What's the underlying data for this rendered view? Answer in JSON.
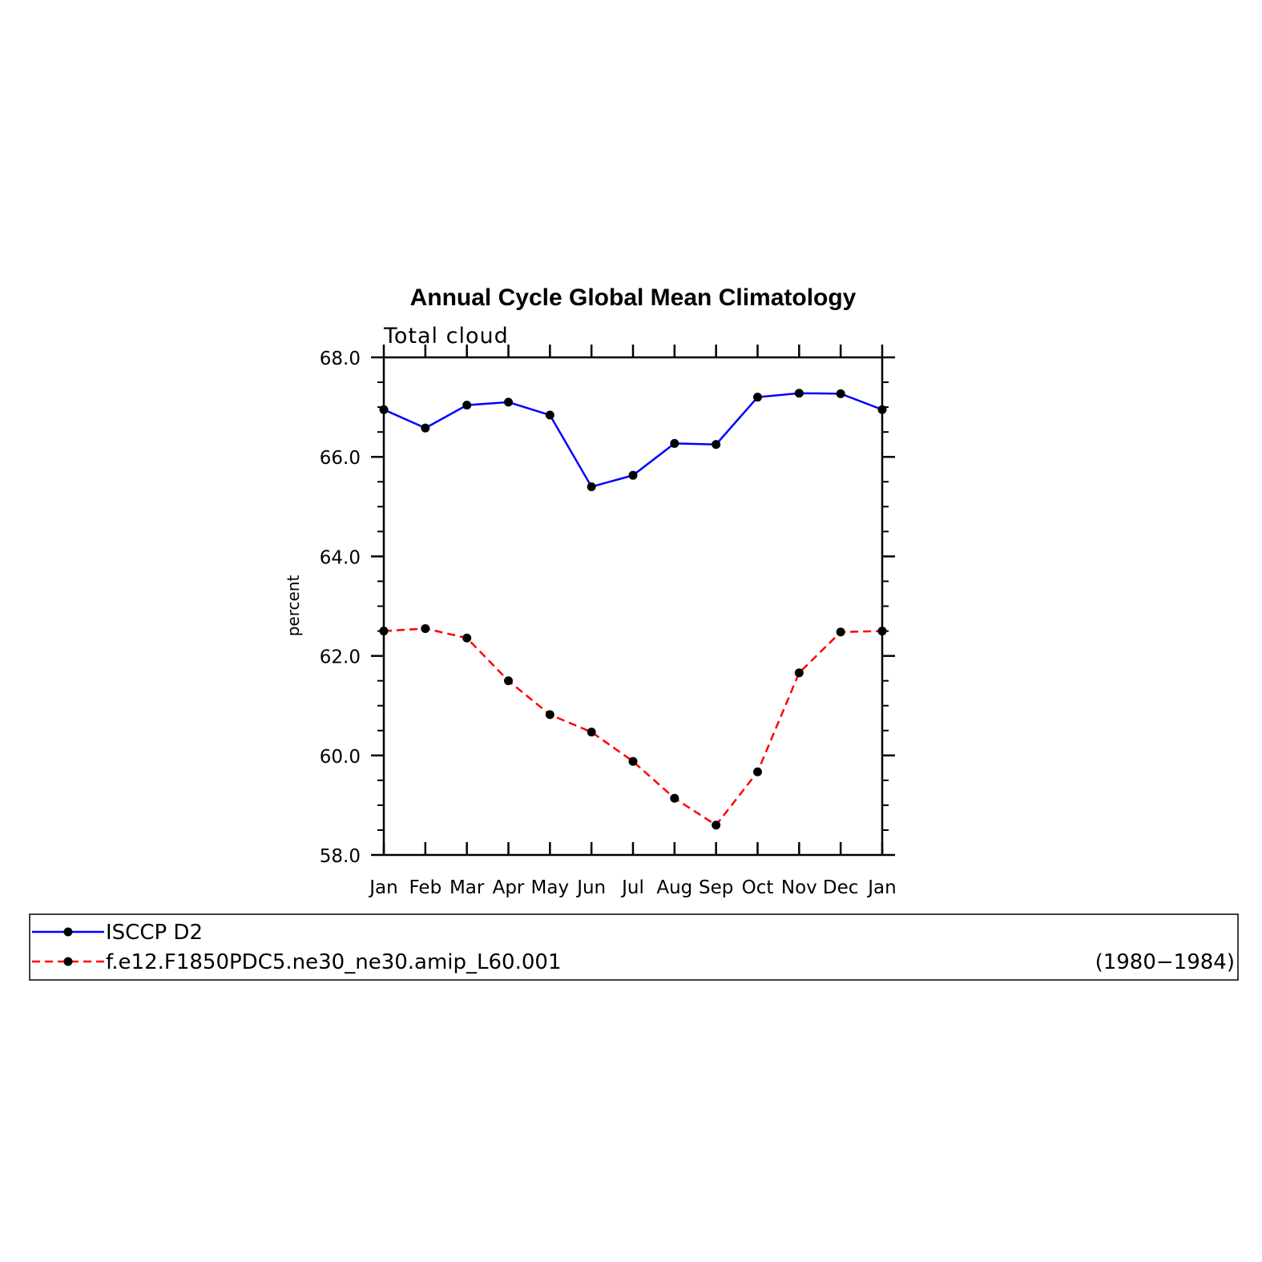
{
  "chart_data": {
    "type": "line",
    "title": "Annual Cycle Global Mean Climatology",
    "subtitle": "Total cloud",
    "xlabel": "",
    "ylabel": "percent",
    "categories": [
      "Jan",
      "Feb",
      "Mar",
      "Apr",
      "May",
      "Jun",
      "Jul",
      "Aug",
      "Sep",
      "Oct",
      "Nov",
      "Dec",
      "Jan"
    ],
    "ylim": [
      58.0,
      68.0
    ],
    "yticks": [
      "58.0",
      "60.0",
      "62.0",
      "64.0",
      "66.0",
      "68.0"
    ],
    "grid": false,
    "legend_position": "bottom",
    "series": [
      {
        "name": "ISCCP D2",
        "color": "#0000ff",
        "dash": "solid",
        "marker": "dot",
        "values": [
          66.95,
          66.58,
          67.04,
          67.1,
          66.84,
          65.4,
          65.63,
          66.27,
          66.25,
          67.2,
          67.28,
          67.27,
          66.95
        ]
      },
      {
        "name": "f.e12.F1850PDC5.ne30_ne30.amip_L60.001",
        "color": "#ff0000",
        "dash": "dashed",
        "marker": "dot",
        "values": [
          62.5,
          62.55,
          62.36,
          61.5,
          60.82,
          60.47,
          59.88,
          59.14,
          58.6,
          59.67,
          61.66,
          62.48,
          62.5
        ]
      }
    ],
    "legend_note": "(1980−1984)"
  }
}
